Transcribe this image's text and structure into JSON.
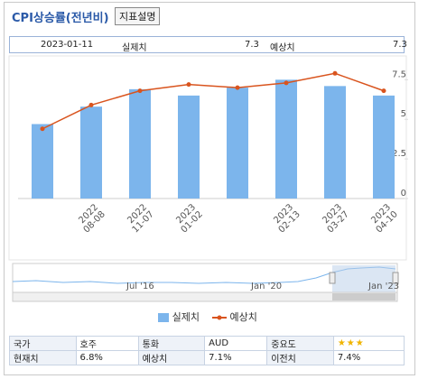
{
  "header": {
    "title": "CPI상승률(전년비)",
    "button": "지표설명"
  },
  "info": {
    "date": "2023-01-11",
    "actual_label": "실제치",
    "actual": "7.3",
    "forecast_label": "예상치",
    "forecast": "7.3"
  },
  "chart_data": {
    "type": "bar_line",
    "categories": [
      null,
      [
        "2022",
        "08-08"
      ],
      [
        "2022",
        "11-07"
      ],
      [
        "2023",
        "01-02"
      ],
      null,
      [
        "2023",
        "02-13"
      ],
      [
        "2023",
        "03-27"
      ],
      [
        "2023",
        "04-10"
      ]
    ],
    "series": [
      {
        "name": "실제치",
        "color": "#7cb5ec",
        "kind": "bar",
        "values": [
          4.7,
          5.8,
          6.9,
          6.5,
          7.0,
          7.5,
          7.1,
          6.5
        ]
      },
      {
        "name": "예상치",
        "color": "#d9541e",
        "kind": "line",
        "values": [
          4.4,
          5.9,
          6.8,
          7.2,
          7.0,
          7.3,
          7.9,
          6.8
        ]
      }
    ],
    "ylim": [
      0,
      9
    ],
    "yticks": [
      0,
      2.5,
      5,
      7.5
    ]
  },
  "navigator": {
    "labels": [
      "Jul '16",
      "Jan '20",
      "Jan '23"
    ]
  },
  "table": {
    "rows": [
      [
        "국가",
        "호주",
        "통화",
        "AUD",
        "중요도",
        "★★★"
      ],
      [
        "현재치",
        "6.8%",
        "예상치",
        "7.1%",
        "이전치",
        "7.4%"
      ]
    ]
  }
}
